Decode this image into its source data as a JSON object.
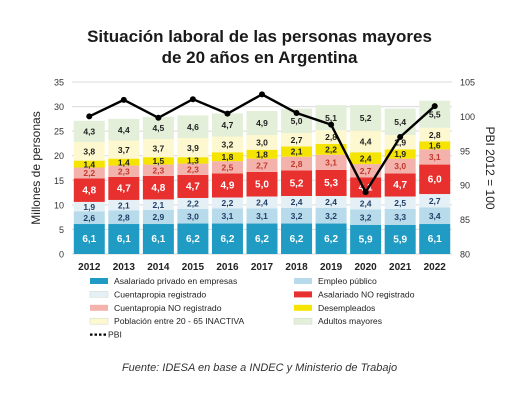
{
  "chart_data": {
    "type": "bar",
    "title_line1": "Situación laboral de las personas mayores",
    "title_line2": "de 20 años en Argentina",
    "ylabel": "Millones de personas",
    "y2label": "PBI 2012 = 100",
    "ylim": [
      0,
      35
    ],
    "y_ticks": [
      "0",
      "5",
      "10",
      "15",
      "20",
      "25",
      "30",
      "35"
    ],
    "y2lim": [
      80,
      105
    ],
    "y2_ticks": [
      "80",
      "85",
      "90",
      "95",
      "100",
      "105"
    ],
    "grid": true,
    "legend_position": "bottom",
    "categories": [
      "2012",
      "2013",
      "2014",
      "2015",
      "2016",
      "2017",
      "2018",
      "2019",
      "2020",
      "2021",
      "2022"
    ],
    "series": [
      {
        "name": "Asalariado privado en empresas",
        "color": "#1f9bc4",
        "label_color": "#ffffff",
        "values": [
          6.1,
          6.1,
          6.1,
          6.2,
          6.2,
          6.2,
          6.2,
          6.2,
          5.9,
          5.9,
          6.1
        ],
        "labels": [
          "6,1",
          "6,1",
          "6,1",
          "6,2",
          "6,2",
          "6,2",
          "6,2",
          "6,2",
          "5,9",
          "5,9",
          "6,1"
        ]
      },
      {
        "name": "Empleo público",
        "color": "#b7dbeb",
        "label_color": "#1f3f66",
        "values": [
          2.6,
          2.8,
          2.9,
          3.0,
          3.1,
          3.1,
          3.2,
          3.2,
          3.2,
          3.3,
          3.4
        ],
        "labels": [
          "2,6",
          "2,8",
          "2,9",
          "3,0",
          "3,1",
          "3,1",
          "3,2",
          "3,2",
          "3,2",
          "3,3",
          "3,4"
        ]
      },
      {
        "name": "Cuentapropia registrado",
        "color": "#e4f0f6",
        "label_color": "#1f3f66",
        "values": [
          1.9,
          2.1,
          2.1,
          2.2,
          2.2,
          2.4,
          2.4,
          2.4,
          2.4,
          2.5,
          2.7
        ],
        "labels": [
          "1,9",
          "2,1",
          "2,1",
          "2,2",
          "2,2",
          "2,4",
          "2,4",
          "2,4",
          "2,4",
          "2,5",
          "2,7"
        ]
      },
      {
        "name": "Asalariado NO registrado",
        "color": "#e8312f",
        "label_color": "#ffffff",
        "values": [
          4.8,
          4.7,
          4.8,
          4.7,
          4.9,
          5.0,
          5.2,
          5.3,
          4.1,
          4.7,
          6.0
        ],
        "labels": [
          "4,8",
          "4,7",
          "4,8",
          "4,7",
          "4,9",
          "5,0",
          "5,2",
          "5,3",
          "4,1",
          "4,7",
          "6,0"
        ]
      },
      {
        "name": "Cuentapropia NO registrado",
        "color": "#f3b3ac",
        "label_color": "#c0392b",
        "values": [
          2.2,
          2.3,
          2.3,
          2.3,
          2.5,
          2.7,
          2.8,
          3.1,
          2.7,
          3.0,
          3.1
        ],
        "labels": [
          "2,2",
          "2,3",
          "2,3",
          "2,3",
          "2,5",
          "2,7",
          "2,8",
          "3,1",
          "2,7",
          "3,0",
          "3,1"
        ]
      },
      {
        "name": "Desempleados",
        "color": "#f5e400",
        "label_color": "#222222",
        "values": [
          1.4,
          1.4,
          1.5,
          1.3,
          1.8,
          1.8,
          2.1,
          2.2,
          2.4,
          1.9,
          1.6
        ],
        "labels": [
          "1,4",
          "1,4",
          "1,5",
          "1,3",
          "1,8",
          "1,8",
          "2,1",
          "2,2",
          "2,4",
          "1,9",
          "1,6"
        ]
      },
      {
        "name": "Población entre 20 - 65 INACTIVA",
        "color": "#fdf8cf",
        "label_color": "#222222",
        "values": [
          3.8,
          3.7,
          3.7,
          3.9,
          3.2,
          3.0,
          2.7,
          2.8,
          4.4,
          2.9,
          2.8
        ],
        "labels": [
          "3,8",
          "3,7",
          "3,7",
          "3,9",
          "3,2",
          "3,0",
          "2,7",
          "2,8",
          "4,4",
          "2,9",
          "2,8"
        ]
      },
      {
        "name": "Adultos mayores",
        "color": "#e3efd8",
        "label_color": "#222222",
        "values": [
          4.3,
          4.4,
          4.5,
          4.6,
          4.7,
          4.9,
          5.0,
          5.1,
          5.2,
          5.4,
          5.5
        ],
        "labels": [
          "4,3",
          "4,4",
          "4,5",
          "4,6",
          "4,7",
          "4,9",
          "5,0",
          "5,1",
          "5,2",
          "5,4",
          "5,5"
        ]
      }
    ],
    "line": {
      "name": "PBI",
      "axis": "right",
      "color": "#000000",
      "values": [
        100.0,
        102.4,
        99.8,
        102.5,
        100.4,
        103.2,
        100.5,
        98.8,
        89.0,
        97.0,
        101.5
      ]
    },
    "source": "Fuente: IDESA en base a INDEC y Ministerio de Trabajo"
  }
}
